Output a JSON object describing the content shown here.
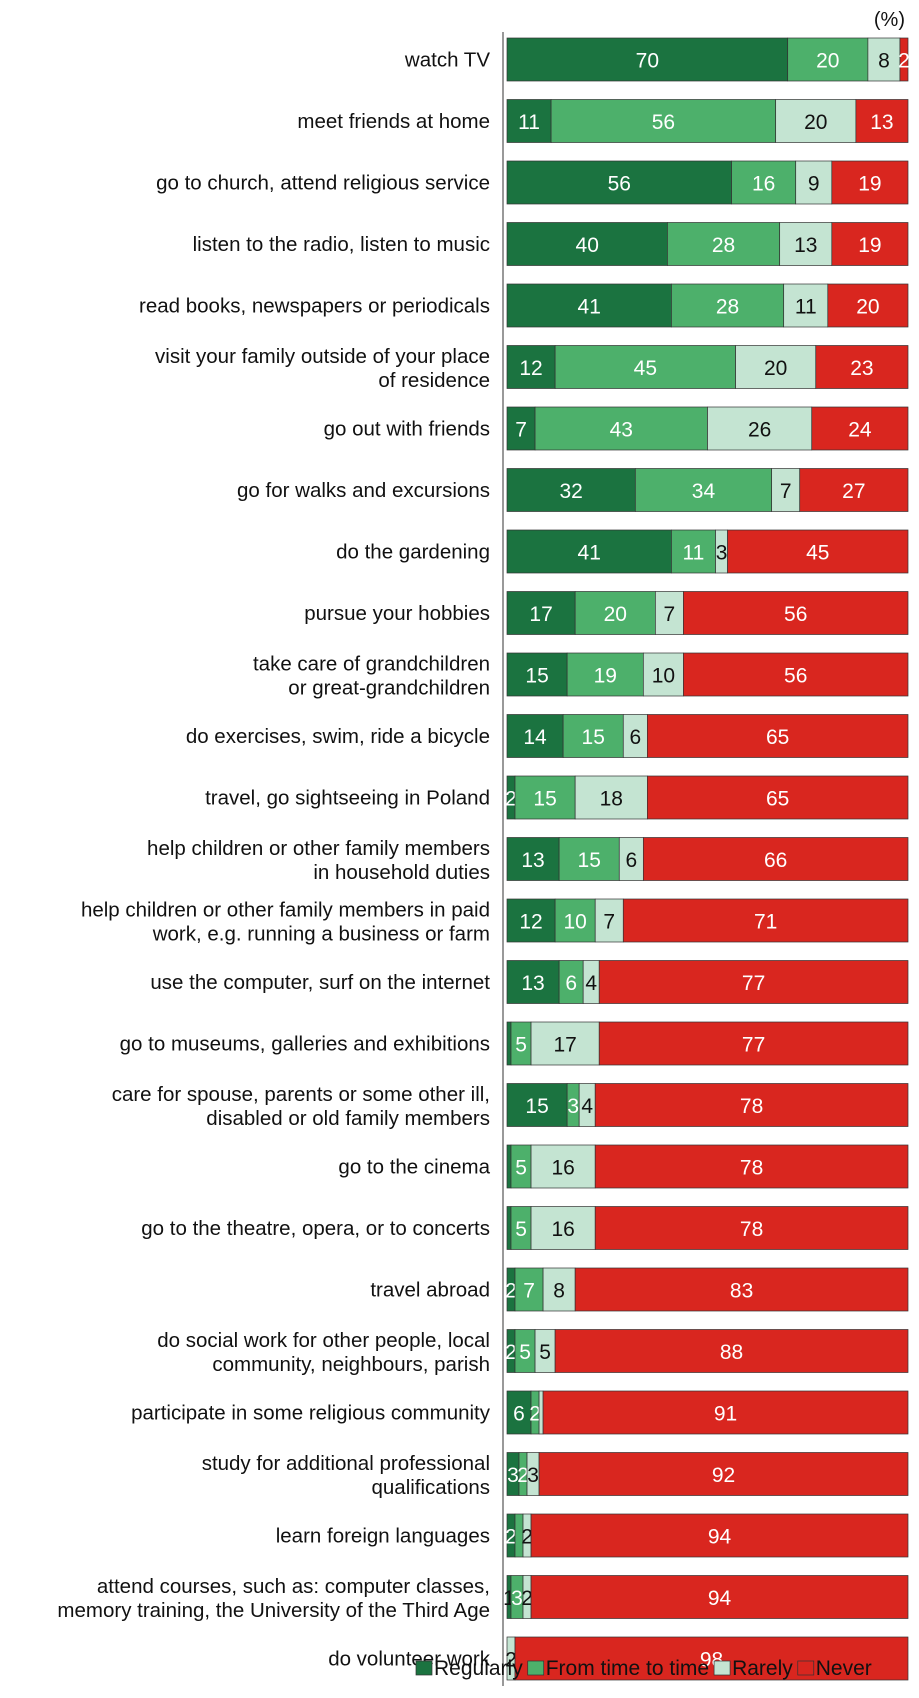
{
  "chart_data": {
    "type": "bar",
    "orientation": "horizontal",
    "stacked": true,
    "unit": "(%)",
    "title": "",
    "xlabel": "",
    "ylabel": "",
    "xlim": [
      0,
      100
    ],
    "grid": false,
    "legend_position": "bottom-right",
    "categories": [
      [
        "watch TV"
      ],
      [
        "meet friends at home"
      ],
      [
        "go to church, attend religious service"
      ],
      [
        "listen to the radio, listen to music"
      ],
      [
        "read books, newspapers or periodicals"
      ],
      [
        "visit your family outside of your place",
        "of residence"
      ],
      [
        "go out with friends"
      ],
      [
        "go for walks and excursions"
      ],
      [
        "do the gardening"
      ],
      [
        "pursue your hobbies"
      ],
      [
        "take care of grandchildren",
        "or great-grandchildren"
      ],
      [
        "do exercises, swim, ride a bicycle"
      ],
      [
        "travel, go sightseeing in Poland"
      ],
      [
        "help children or other family members",
        "in household duties"
      ],
      [
        "help children or other family members in paid",
        "work, e.g. running a business or farm"
      ],
      [
        "use the computer, surf on the internet"
      ],
      [
        "go to museums, galleries and exhibitions"
      ],
      [
        "care for spouse, parents or some other ill,",
        "disabled or old family members"
      ],
      [
        "go to the cinema"
      ],
      [
        "go to the theatre, opera, or to concerts"
      ],
      [
        "travel abroad"
      ],
      [
        "do social work for other people, local",
        "community, neighbours, parish"
      ],
      [
        "participate in some religious community"
      ],
      [
        "study for additional professional",
        "qualifications"
      ],
      [
        "learn foreign languages"
      ],
      [
        "attend courses, such as: computer classes,",
        "memory training, the University of the Third Age"
      ],
      [
        "do volunteer work"
      ]
    ],
    "series": [
      {
        "name": "Regularly",
        "color": "#1b7340",
        "label_color": "#ffffff",
        "values": [
          70,
          11,
          56,
          40,
          41,
          12,
          7,
          32,
          41,
          17,
          15,
          14,
          2,
          13,
          12,
          13,
          1,
          15,
          1,
          1,
          2,
          2,
          6,
          3,
          2,
          1,
          0
        ]
      },
      {
        "name": "From time to time",
        "color": "#4db06b",
        "label_color": "#ffffff",
        "values": [
          20,
          56,
          16,
          28,
          28,
          45,
          43,
          34,
          11,
          20,
          19,
          15,
          15,
          15,
          10,
          6,
          5,
          3,
          5,
          5,
          7,
          5,
          2,
          2,
          2,
          3,
          0
        ]
      },
      {
        "name": "Rarely",
        "color": "#c4e4d2",
        "label_color": "#111111",
        "values": [
          8,
          20,
          9,
          13,
          11,
          20,
          26,
          7,
          3,
          7,
          10,
          6,
          18,
          6,
          7,
          4,
          17,
          4,
          16,
          16,
          8,
          5,
          1,
          3,
          2,
          2,
          2
        ]
      },
      {
        "name": "Never",
        "color": "#d9261f",
        "label_color": "#ffffff",
        "values": [
          2,
          13,
          19,
          19,
          20,
          23,
          24,
          27,
          45,
          56,
          56,
          65,
          65,
          66,
          71,
          77,
          77,
          78,
          78,
          78,
          83,
          88,
          91,
          92,
          94,
          94,
          98
        ]
      }
    ],
    "data_labels": [
      [
        "70",
        "20",
        "8",
        "2"
      ],
      [
        "11",
        "56",
        "20",
        "13"
      ],
      [
        "56",
        "16",
        "9",
        "19"
      ],
      [
        "40",
        "28",
        "13",
        "19"
      ],
      [
        "41",
        "28",
        "11",
        "20"
      ],
      [
        "12",
        "45",
        "20",
        "23"
      ],
      [
        "7",
        "43",
        "26",
        "24"
      ],
      [
        "32",
        "34",
        "7",
        "27"
      ],
      [
        "41",
        "11",
        "3",
        "45"
      ],
      [
        "17",
        "20",
        "7",
        "56"
      ],
      [
        "15",
        "19",
        "10",
        "56"
      ],
      [
        "14",
        "15",
        "6",
        "65"
      ],
      [
        "2",
        "15",
        "18",
        "65"
      ],
      [
        "13",
        "15",
        "6",
        "66"
      ],
      [
        "12",
        "10",
        "7",
        "71"
      ],
      [
        "13",
        "6",
        "4",
        "77"
      ],
      [
        "",
        "5",
        "17",
        "77"
      ],
      [
        "15",
        "3",
        "4",
        "78"
      ],
      [
        "",
        "5",
        "16",
        "78"
      ],
      [
        "",
        "5",
        "16",
        "78"
      ],
      [
        "2",
        "7",
        "8",
        "83"
      ],
      [
        "2",
        "5",
        "5",
        "88"
      ],
      [
        "6",
        "2",
        "",
        "91"
      ],
      [
        "3",
        "2",
        "3",
        "92"
      ],
      [
        "2",
        "",
        "2",
        "94"
      ],
      [
        "1",
        "3",
        "2",
        "94"
      ],
      [
        "",
        "",
        "2",
        "98"
      ]
    ]
  }
}
